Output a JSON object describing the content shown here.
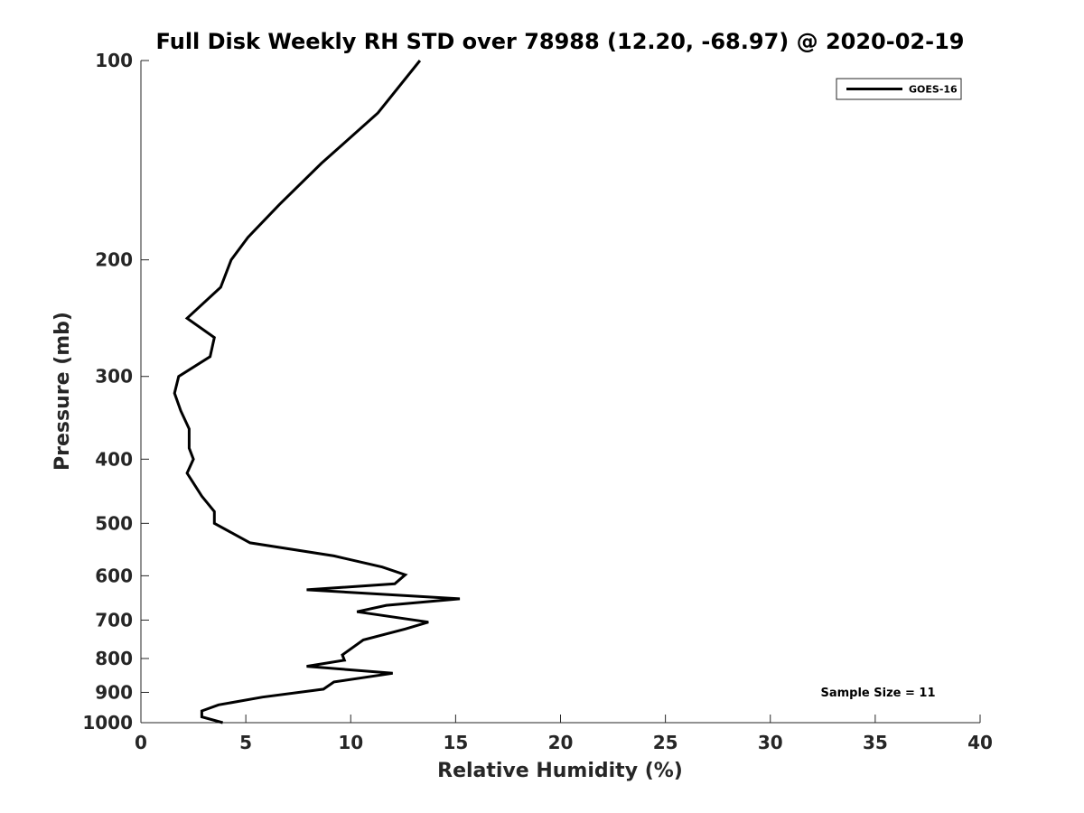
{
  "chart_data": {
    "type": "line",
    "title": "Full Disk Weekly RH STD over 78988 (12.20, -68.97) @ 2020-02-19",
    "xlabel": "Relative Humidity (%)",
    "ylabel": "Pressure (mb)",
    "xlim": [
      0,
      40
    ],
    "ylim": [
      100,
      1000
    ],
    "yscale": "log",
    "y_reversed": true,
    "grid": false,
    "xticks": [
      0,
      5,
      10,
      15,
      20,
      25,
      30,
      35,
      40
    ],
    "xtick_labels": [
      "0",
      "5",
      "10",
      "15",
      "20",
      "25",
      "30",
      "35",
      "40"
    ],
    "yticks": [
      100,
      200,
      300,
      400,
      500,
      600,
      700,
      800,
      900,
      1000
    ],
    "ytick_labels": [
      "100",
      "200",
      "300",
      "400",
      "500",
      "600",
      "700",
      "800",
      "900",
      "1000"
    ],
    "legend": {
      "position": "top-right",
      "entries": [
        "GOES-16"
      ]
    },
    "annotation": "Sample Size = 11",
    "series": [
      {
        "name": "GOES-16",
        "color": "#000000",
        "x": [
          13.3,
          11.3,
          8.6,
          6.6,
          5.1,
          4.3,
          3.8,
          2.2,
          3.5,
          3.3,
          1.8,
          1.6,
          1.9,
          2.3,
          2.3,
          2.5,
          2.2,
          2.9,
          3.5,
          3.5,
          5.2,
          9.2,
          11.5,
          12.6,
          12.1,
          7.9,
          15.2,
          11.7,
          10.3,
          13.7,
          12.6,
          10.6,
          9.6,
          9.7,
          7.9,
          12.0,
          9.2,
          8.7,
          5.8,
          3.7,
          2.9,
          2.9,
          3.9
        ],
        "y": [
          100,
          120,
          143,
          165,
          185,
          200,
          220,
          245,
          262,
          280,
          300,
          318,
          338,
          360,
          385,
          400,
          420,
          455,
          480,
          500,
          535,
          560,
          582,
          598,
          617,
          630,
          650,
          665,
          680,
          705,
          722,
          750,
          790,
          805,
          822,
          842,
          868,
          890,
          915,
          940,
          960,
          980,
          1000
        ]
      }
    ]
  }
}
